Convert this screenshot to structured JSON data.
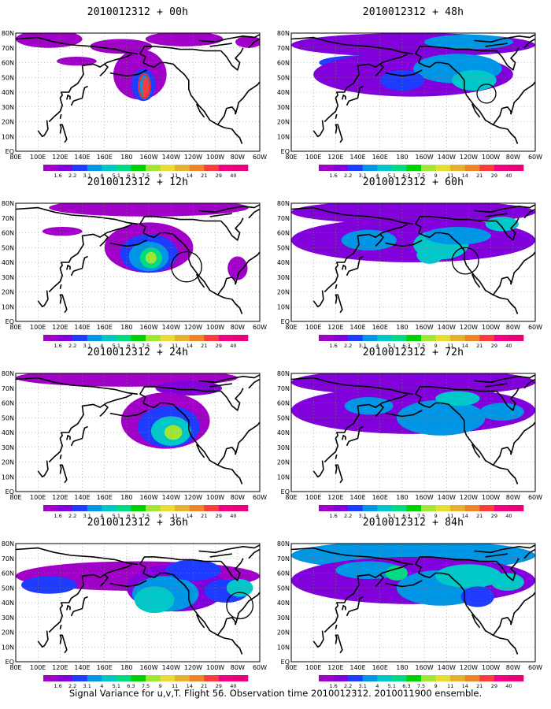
{
  "caption": "Signal Variance for u,v,T. Flight 56. Observation time 2010012312. 2010011900 ensemble.",
  "colorbar": {
    "levels": [
      "1.6",
      "2.2",
      "3.1",
      "4",
      "5.1",
      "6.3",
      "7.5",
      "9",
      "11",
      "14",
      "21",
      "29",
      "40"
    ],
    "colors": [
      "#a000c8",
      "#8200dc",
      "#1e3cff",
      "#0096e6",
      "#00c8c8",
      "#00dc82",
      "#00d200",
      "#a0e632",
      "#e6dc32",
      "#e6af2d",
      "#f08228",
      "#fa3c3c",
      "#f00082",
      "#e6007a"
    ]
  },
  "axes": {
    "lat_labels": [
      "EQ",
      "10N",
      "20N",
      "30N",
      "40N",
      "50N",
      "60N",
      "70N",
      "80N"
    ],
    "lon_labels": [
      "80E",
      "100E",
      "120E",
      "140E",
      "160E",
      "180",
      "160W",
      "140W",
      "120W",
      "100W",
      "80W",
      "60W"
    ]
  },
  "panels": [
    {
      "title": "2010012312 + 00h",
      "lead": 0
    },
    {
      "title": "2010012312 + 48h",
      "lead": 48
    },
    {
      "title": "2010012312 + 12h",
      "lead": 12
    },
    {
      "title": "2010012312 + 60h",
      "lead": 60
    },
    {
      "title": "2010012312 + 24h",
      "lead": 24
    },
    {
      "title": "2010012312 + 72h",
      "lead": 72
    },
    {
      "title": "2010012312 + 36h",
      "lead": 36
    },
    {
      "title": "2010012312 + 84h",
      "lead": 84
    }
  ]
}
